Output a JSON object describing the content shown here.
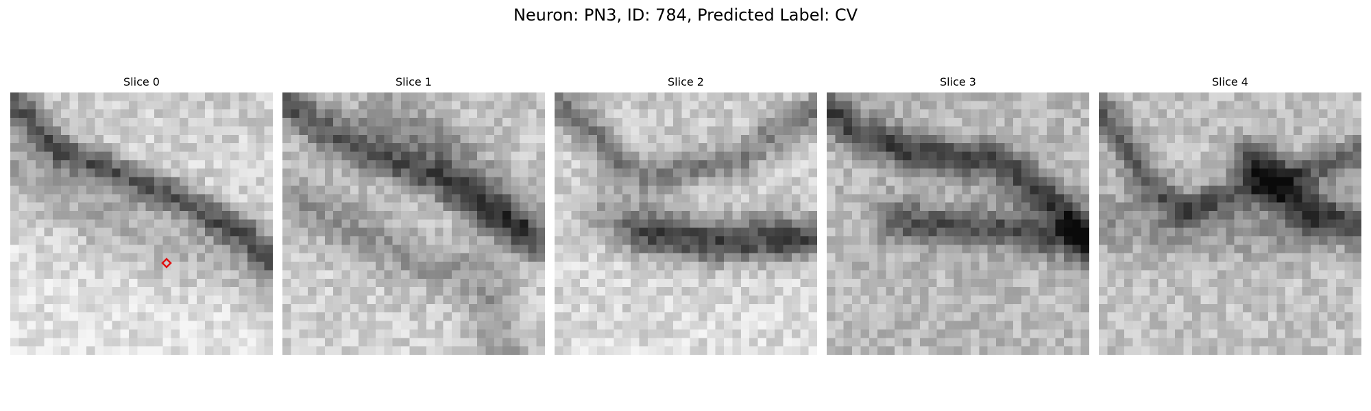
{
  "figure": {
    "title": "Neuron: PN3, ID: 784, Predicted Label: CV"
  },
  "panels": [
    {
      "title": "Slice 0"
    },
    {
      "title": "Slice 1"
    },
    {
      "title": "Slice 2"
    },
    {
      "title": "Slice 3"
    },
    {
      "title": "Slice 4"
    }
  ],
  "marker": {
    "panel": "Slice 0",
    "shape": "diamond",
    "color": "#e01010"
  },
  "image": {
    "colormap": "grayscale",
    "grid": "31x31 pixel patches"
  }
}
